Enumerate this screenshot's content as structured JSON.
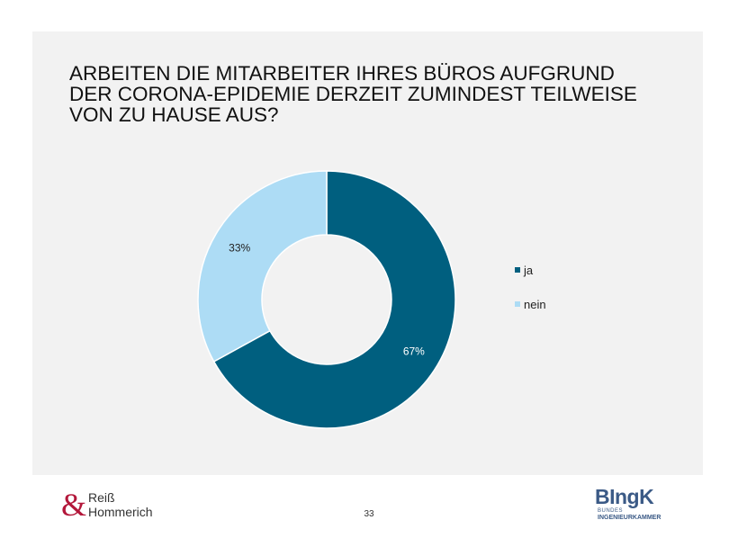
{
  "title_lines": [
    "ARBEITEN DIE MITARBEITER IHRES BÜROS AUFGRUND",
    "DER CORONA-EPIDEMIE DERZEIT ZUMINDEST TEILWEISE",
    "VON ZU HAUSE AUS?"
  ],
  "chart_data": {
    "type": "pie",
    "variant": "donut",
    "categories": [
      "ja",
      "nein"
    ],
    "values": [
      67,
      33
    ],
    "value_labels": [
      "67%",
      "33%"
    ],
    "colors": [
      "#005f7f",
      "#addcf5"
    ],
    "legend_position": "right"
  },
  "page_number": "33",
  "logo_left": {
    "ampersand": "&",
    "line1": "Reiß",
    "line2": "Hommerich",
    "color_amp": "#b3173a"
  },
  "logo_right": {
    "mark": "BIngK",
    "line1": "BUNDES",
    "line2": "INGENIEURKAMMER"
  }
}
